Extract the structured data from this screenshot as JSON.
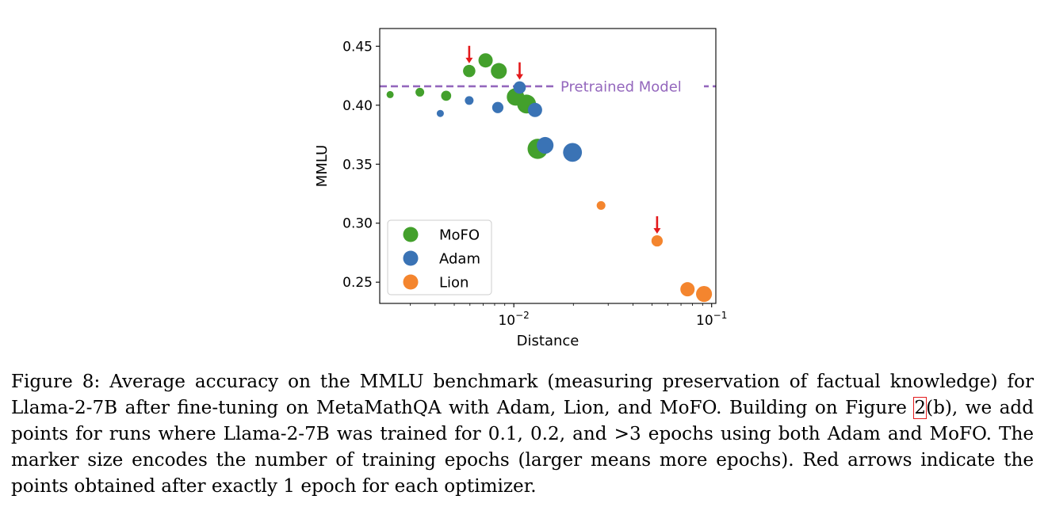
{
  "chart_data": {
    "type": "scatter",
    "xlabel": "Distance",
    "ylabel": "MMLU",
    "xscale": "log",
    "xlim": [
      0.0021,
      0.105
    ],
    "ylim": [
      0.232,
      0.465
    ],
    "xticks": [
      {
        "value": 0.01,
        "base": "10",
        "exp": "−2"
      },
      {
        "value": 0.1,
        "base": "10",
        "exp": "−1"
      }
    ],
    "yticks": [
      {
        "value": 0.25,
        "label": "0.25"
      },
      {
        "value": 0.3,
        "label": "0.30"
      },
      {
        "value": 0.35,
        "label": "0.35"
      },
      {
        "value": 0.4,
        "label": "0.40"
      },
      {
        "value": 0.45,
        "label": "0.45"
      }
    ],
    "reference_line": {
      "y": 0.416,
      "label": "Pretrained Model",
      "color": "#9467bd"
    },
    "series": [
      {
        "name": "MoFO",
        "color": "#43a02c",
        "points": [
          {
            "x": 0.00237,
            "y": 0.409,
            "size": 1
          },
          {
            "x": 0.00335,
            "y": 0.411,
            "size": 1.5
          },
          {
            "x": 0.00455,
            "y": 0.408,
            "size": 2
          },
          {
            "x": 0.00595,
            "y": 0.429,
            "size": 3
          },
          {
            "x": 0.0072,
            "y": 0.438,
            "size": 4
          },
          {
            "x": 0.0084,
            "y": 0.429,
            "size": 5
          },
          {
            "x": 0.0102,
            "y": 0.407,
            "size": 6
          },
          {
            "x": 0.0116,
            "y": 0.401,
            "size": 7
          },
          {
            "x": 0.0132,
            "y": 0.363,
            "size": 8
          }
        ]
      },
      {
        "name": "Adam",
        "color": "#3a73b5",
        "points": [
          {
            "x": 0.00425,
            "y": 0.393,
            "size": 1
          },
          {
            "x": 0.00595,
            "y": 0.404,
            "size": 1.5
          },
          {
            "x": 0.0083,
            "y": 0.398,
            "size": 2.5
          },
          {
            "x": 0.0107,
            "y": 0.415,
            "size": 3
          },
          {
            "x": 0.0128,
            "y": 0.396,
            "size": 4
          },
          {
            "x": 0.0144,
            "y": 0.366,
            "size": 5.5
          },
          {
            "x": 0.0198,
            "y": 0.36,
            "size": 7
          }
        ]
      },
      {
        "name": "Lion",
        "color": "#f4852e",
        "points": [
          {
            "x": 0.0276,
            "y": 0.315,
            "size": 1.5
          },
          {
            "x": 0.053,
            "y": 0.285,
            "size": 2.5
          },
          {
            "x": 0.0755,
            "y": 0.244,
            "size": 4
          },
          {
            "x": 0.0915,
            "y": 0.24,
            "size": 5
          }
        ]
      }
    ],
    "one_epoch_markers": [
      {
        "series": "MoFO",
        "x": 0.00595,
        "y": 0.429
      },
      {
        "series": "Adam",
        "x": 0.0107,
        "y": 0.415
      },
      {
        "series": "Lion",
        "x": 0.053,
        "y": 0.285
      }
    ],
    "arrow_color": "#e31a1c",
    "legend": {
      "position": "lower-left",
      "entries": [
        "MoFO",
        "Adam",
        "Lion"
      ]
    }
  },
  "caption": {
    "before_ref": "Figure 8: Average accuracy on the MMLU benchmark (measuring preservation of factual knowledge) for Llama-2-7B after fine-tuning on MetaMathQA with Adam, Lion, and MoFO. Building on Figure ",
    "ref": "2",
    "after_ref": "(b), we add points for runs where Llama-2-7B was trained for 0.1, 0.2, and >3 epochs using both Adam and MoFO. The marker size encodes the number of training epochs (larger means more epochs). Red arrows indicate the points obtained after exactly 1 epoch for each optimizer."
  }
}
